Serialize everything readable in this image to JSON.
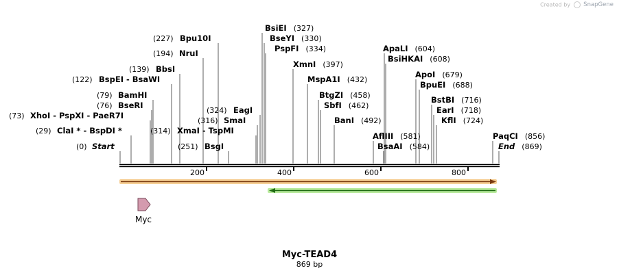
{
  "watermark": {
    "prefix": "Created by",
    "brand": "SnapGene"
  },
  "map_title": "Myc-TEAD4",
  "map_length": "869 bp",
  "ruler_ticks": [
    "200",
    "400",
    "600",
    "800"
  ],
  "feature_label": "Myc",
  "enzymes": [
    {
      "pos": "(0)",
      "name": "Start",
      "italic": true
    },
    {
      "pos": "(29)",
      "name": "ClaI * - BspDI *"
    },
    {
      "pos": "(73)",
      "name": "XhoI - PspXI - PaeR7I"
    },
    {
      "pos": "(76)",
      "name": "BseRI"
    },
    {
      "pos": "(79)",
      "name": "BamHI"
    },
    {
      "pos": "(122)",
      "name": "BspEI - BsaWI"
    },
    {
      "pos": "(139)",
      "name": "BbsI"
    },
    {
      "pos": "(194)",
      "name": "NruI"
    },
    {
      "pos": "(227)",
      "name": "Bpu10I"
    },
    {
      "pos": "(251)",
      "name": "BsgI"
    },
    {
      "pos": "(314)",
      "name": "XmaI - TspMI"
    },
    {
      "pos": "(316)",
      "name": "SmaI"
    },
    {
      "pos": "(324)",
      "name": "EagI"
    },
    {
      "pos": "(327)",
      "name": "BsiEI"
    },
    {
      "pos": "(330)",
      "name": "BseYI"
    },
    {
      "pos": "(334)",
      "name": "PspFI"
    },
    {
      "pos": "(397)",
      "name": "XmnI"
    },
    {
      "pos": "(432)",
      "name": "MspA1I"
    },
    {
      "pos": "(458)",
      "name": "BtgZI"
    },
    {
      "pos": "(462)",
      "name": "SbfI"
    },
    {
      "pos": "(492)",
      "name": "BanI"
    },
    {
      "pos": "(581)",
      "name": "AflIII"
    },
    {
      "pos": "(584)",
      "name": "BsaAI"
    },
    {
      "pos": "(604)",
      "name": "ApaLI"
    },
    {
      "pos": "(608)",
      "name": "BsiHKAI"
    },
    {
      "pos": "(679)",
      "name": "ApoI"
    },
    {
      "pos": "(688)",
      "name": "BpuEI"
    },
    {
      "pos": "(716)",
      "name": "BstBI"
    },
    {
      "pos": "(718)",
      "name": "EarI"
    },
    {
      "pos": "(724)",
      "name": "KflI"
    },
    {
      "pos": "(856)",
      "name": "PaqCI"
    },
    {
      "pos": "(869)",
      "name": "End",
      "italic": true
    }
  ]
}
